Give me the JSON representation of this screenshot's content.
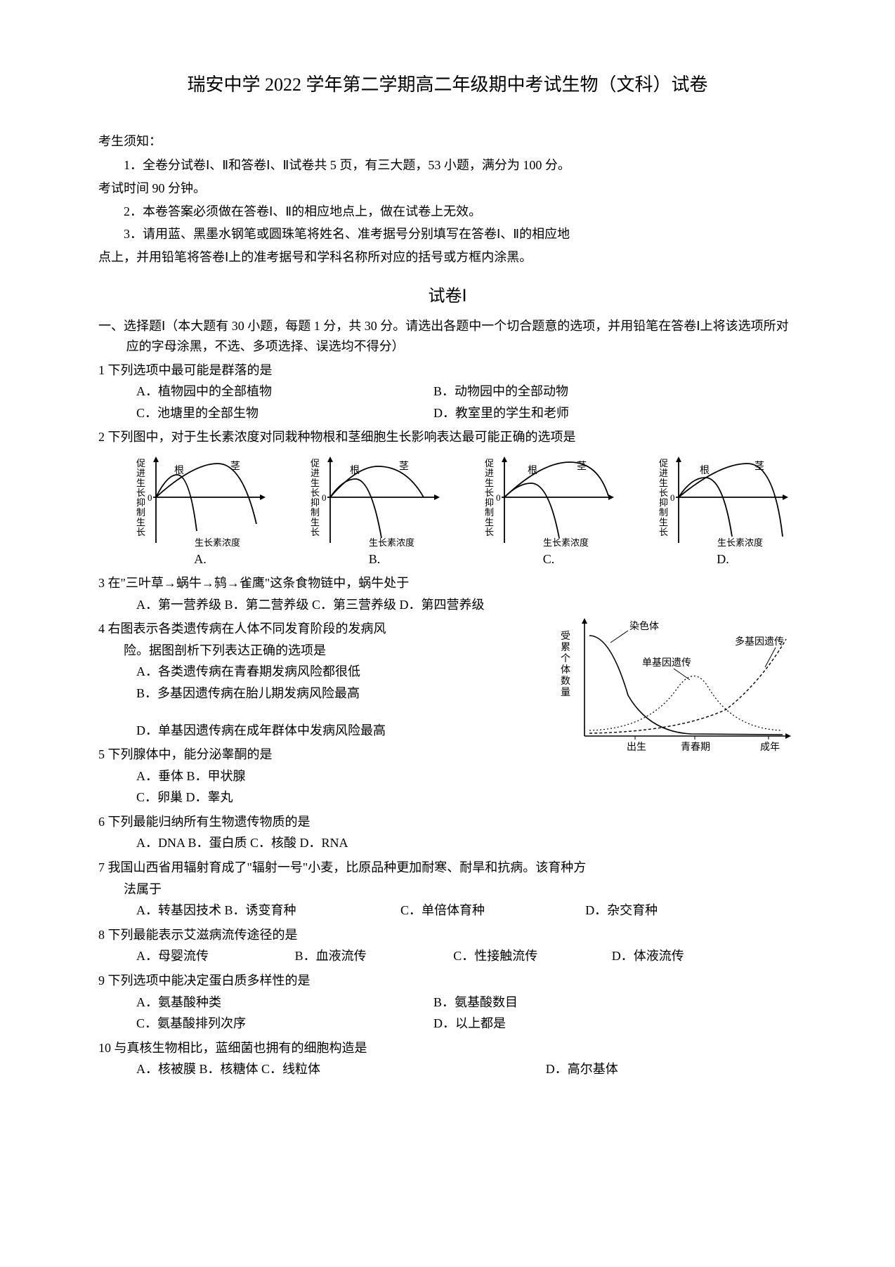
{
  "title": "瑞安中学 2022 学年第二学期高二年级期中考试生物（文科）试卷",
  "notice": {
    "head": "考生须知：",
    "p1a": "1．全卷分试卷Ⅰ、Ⅱ和答卷Ⅰ、Ⅱ试卷共 5 页，有三大题，53 小题，满分为 100 分。",
    "p1b": "考试时间 90 分钟。",
    "p2": "2．本卷答案必须做在答卷Ⅰ、Ⅱ的相应地点上，做在试卷上无效。",
    "p3a": "3．请用蓝、黑墨水钢笔或圆珠笔将姓名、准考据号分别填写在答卷Ⅰ、Ⅱ的相应地",
    "p3b": "点上，并用铅笔将答卷Ⅰ上的准考据号和学科名称所对应的括号或方框内涂黑。"
  },
  "paper_label": "试卷Ⅰ",
  "section1_head": "一、选择题Ⅰ（本大题有 30 小题，每题 1 分，共 30 分。请选出各题中一个切合题意的选项，并用铅笔在答卷Ⅰ上将该选项所对应的字母涂黑，不选、多项选择、误选均不得分）",
  "q1": {
    "stem": "1 下列选项中最可能是群落的是",
    "A": "A．植物园中的全部植物",
    "B": "B．动物园中的全部动物",
    "C": "C．池塘里的全部生物",
    "D": "D．教室里的学生和老师"
  },
  "q2": {
    "stem": "2  下列图中，对于生长素浓度对同栽种物根和茎细胞生长影响表达最可能正确的选项是",
    "chart": {
      "y_upper": "促进生长",
      "y_lower": "抑制生长",
      "x_label": "生长素浓度",
      "root": "根",
      "stem": "茎",
      "labels": [
        "A.",
        "B.",
        "C.",
        "D."
      ],
      "axis_color": "#000000",
      "curve_color": "#000000",
      "line_width": 1.8
    }
  },
  "q3": {
    "stem": "3 在\"三叶草→蜗牛→鸫→雀鹰\"这条食物链中，蜗牛处于",
    "opts": "A．第一营养级 B．第二营养级 C．第三营养级 D．第四营养级"
  },
  "q4": {
    "stem1": "4  右图表示各类遗传病在人体不同发育阶段的发病风",
    "stem2": "险。据图剖析下列表达正确的选项是",
    "A": "A．各类遗传病在青春期发病风险都很低",
    "B": "B．多基因遗传病在胎儿期发病风险最高",
    "D": "D．单基因遗传病在成年群体中发病风险最高",
    "chart": {
      "y_label": "受累个体数量",
      "x_ticks": [
        "出生",
        "青春期",
        "成年"
      ],
      "series": {
        "chrom": "染色体",
        "mono": "单基因遗传",
        "poly": "多基因遗传"
      },
      "axis_color": "#000000",
      "curve_color": "#000000",
      "line_width": 1.6,
      "dash": "4 3"
    }
  },
  "q5": {
    "stem": "5 下列腺体中，能分泌睾酮的是",
    "line1": "A．垂体 B．甲状腺",
    "line2": "C．卵巢 D．睾丸"
  },
  "q6": {
    "stem": "6 下列最能归纳所有生物遗传物质的是",
    "opts": "A．DNA B．蛋白质 C．核酸 D．RNA"
  },
  "q7": {
    "stem1": "7 我国山西省用辐射育成了\"辐射一号\"小麦，比原品种更加耐寒、耐旱和抗病。该育种方",
    "stem2": "法属于",
    "A": "A．转基因技术 B．诱变育种",
    "C": "C．单倍体育种",
    "D": "D．杂交育种"
  },
  "q8": {
    "stem": "8 下列最能表示艾滋病流传途径的是",
    "A": "A．母婴流传",
    "B": "B．血液流传",
    "C": "C．性接触流传",
    "D": "D．体液流传"
  },
  "q9": {
    "stem": "9 下列选项中能决定蛋白质多样性的是",
    "A": "A．氨基酸种类",
    "B": "B．氨基酸数目",
    "C": "C．氨基酸排列次序",
    "D": "D．以上都是"
  },
  "q10": {
    "stem": "10 与真核生物相比，蓝细菌也拥有的细胞构造是",
    "ABC": "A．核被膜 B．核糖体 C．线粒体",
    "D": "D．高尔基体"
  }
}
